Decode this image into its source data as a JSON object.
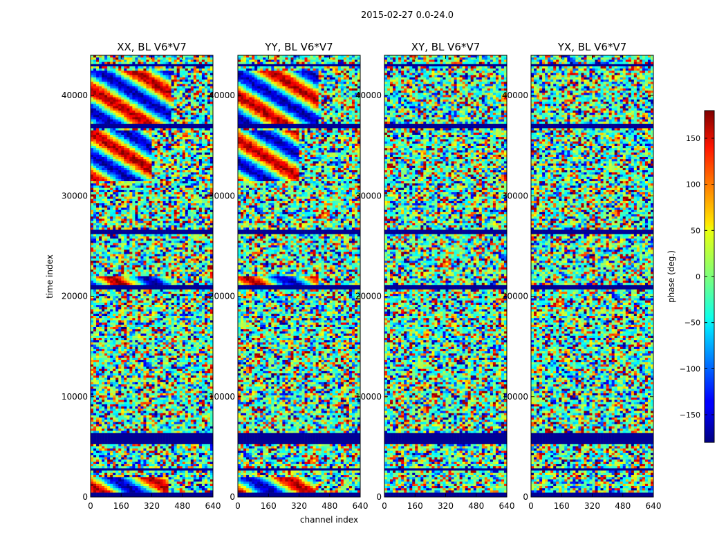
{
  "chart_data": {
    "type": "heatmap",
    "suptitle": "2015-02-27 0.0-24.0",
    "xlabel": "channel index",
    "ylabel": "time index",
    "xlim": [
      0,
      640
    ],
    "ylim": [
      0,
      44000
    ],
    "xticks": [
      0,
      160,
      320,
      480,
      640
    ],
    "yticks": [
      0,
      10000,
      20000,
      30000,
      40000
    ],
    "panels": [
      {
        "title": "XX, BL V6*V7",
        "yticklabels_visible": true
      },
      {
        "title": "YY, BL V6*V7",
        "yticklabels_visible": true
      },
      {
        "title": "XY, BL V6*V7",
        "yticklabels_visible": true
      },
      {
        "title": "YX, BL V6*V7",
        "yticklabels_visible": true
      }
    ],
    "colorbar": {
      "label": "phase (deg.)",
      "colormap": "jet",
      "range": [
        -180,
        180
      ],
      "ticks": [
        -150,
        -100,
        -50,
        0,
        50,
        100,
        150
      ]
    },
    "features": {
      "flagged_rows": [
        [
          0,
          400
        ],
        [
          2600,
          2900
        ],
        [
          5300,
          6300
        ],
        [
          20700,
          21200
        ],
        [
          26200,
          26600
        ],
        [
          36800,
          37100
        ],
        [
          42800,
          43200
        ]
      ],
      "coherent_bands": [
        {
          "y0": 37200,
          "y1": 42500,
          "panels": [
            0,
            1
          ],
          "channels": [
            0,
            420
          ]
        },
        {
          "y0": 21200,
          "y1": 22100,
          "panels": [
            0,
            1
          ],
          "channels": [
            0,
            420
          ]
        },
        {
          "y0": 500,
          "y1": 1900,
          "panels": [
            0,
            1
          ],
          "channels": [
            0,
            400
          ]
        },
        {
          "y0": 31500,
          "y1": 36500,
          "panels": [
            0,
            1
          ],
          "channels": [
            0,
            320
          ]
        }
      ]
    }
  }
}
